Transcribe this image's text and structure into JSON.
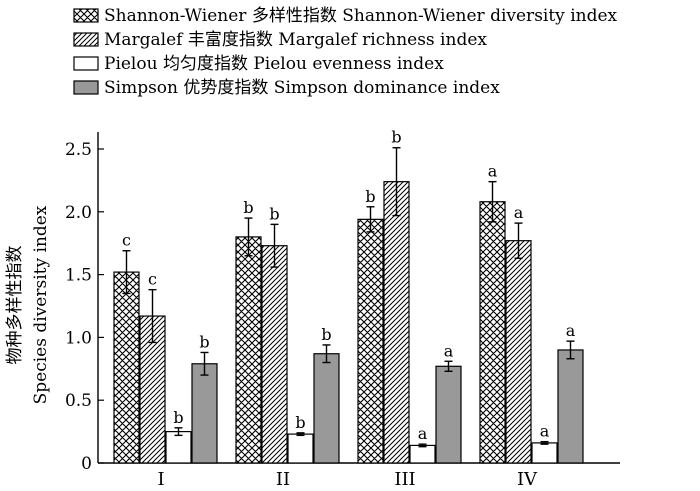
{
  "chart_data": {
    "type": "bar",
    "ylabel_cn": "物种多样性指数",
    "ylabel_en": "Species diversity index",
    "ylim": [
      0,
      2.5
    ],
    "yticks": [
      "0",
      "0.5",
      "1.0",
      "1.5",
      "2.0",
      "2.5"
    ],
    "categories": [
      "I",
      "II",
      "III",
      "IV"
    ],
    "legend_position": "top",
    "series": [
      {
        "name": "Shannon-Wiener 多样性指数 Shannon-Wiener diversity index",
        "pattern": "crosshatch",
        "color": "#000000",
        "values": [
          1.52,
          1.8,
          1.94,
          2.08
        ],
        "errors": [
          0.17,
          0.15,
          0.1,
          0.16
        ],
        "significance": [
          "c",
          "b",
          "b",
          "a"
        ]
      },
      {
        "name": "Margalef 丰富度指数  Margalef richness index",
        "pattern": "diagonal",
        "color": "#000000",
        "values": [
          1.17,
          1.73,
          2.24,
          1.77
        ],
        "errors": [
          0.21,
          0.17,
          0.27,
          0.14
        ],
        "significance": [
          "c",
          "b",
          "b",
          "a"
        ]
      },
      {
        "name": "Pielou 均匀度指数  Pielou evenness index",
        "pattern": "white",
        "color": "#ffffff",
        "values": [
          0.25,
          0.23,
          0.14,
          0.16
        ],
        "errors": [
          0.03,
          0.01,
          0.01,
          0.01
        ],
        "significance": [
          "b",
          "b",
          "a",
          "a"
        ]
      },
      {
        "name": "Simpson 优势度指数 Simpson dominance index",
        "pattern": "gray",
        "color": "#999999",
        "values": [
          0.79,
          0.87,
          0.77,
          0.9
        ],
        "errors": [
          0.09,
          0.07,
          0.04,
          0.07
        ],
        "significance": [
          "b",
          "b",
          "a",
          "a"
        ]
      }
    ]
  }
}
